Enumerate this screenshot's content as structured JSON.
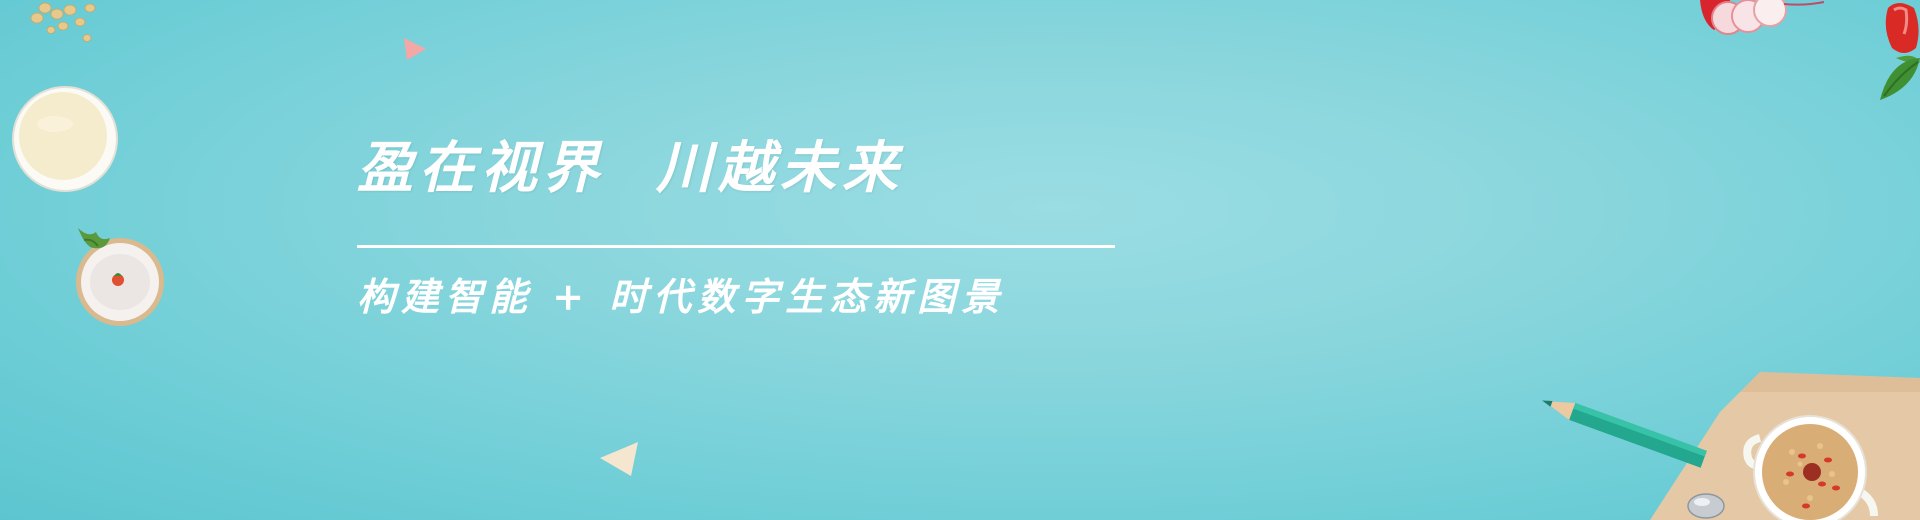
{
  "banner": {
    "headline": "盈在视界  川越未来",
    "subline": "构建智能 + 时代数字生态新图景"
  },
  "colors": {
    "background": "#8ad6dd",
    "text": "#ffffff",
    "pink_triangle": "#f3a7a7",
    "cream_triangle": "#f4e6cf"
  },
  "decorations": [
    "soy-beans",
    "soy-milk-bowl",
    "rice-porridge-bowl",
    "radish-slices",
    "red-bell-pepper",
    "green-pencil",
    "kraft-paper",
    "grain-porridge-cup",
    "spoon",
    "pink-triangle",
    "cream-triangle"
  ]
}
